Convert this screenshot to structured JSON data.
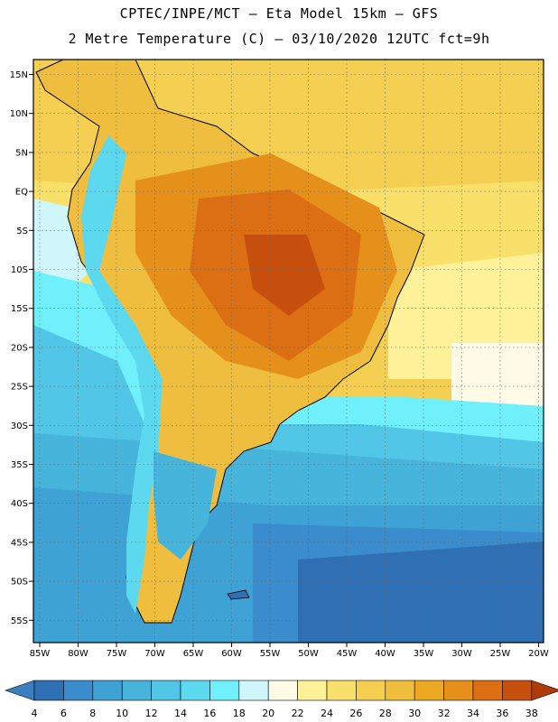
{
  "header": {
    "line1": "CPTEC/INPE/MCT –  Eta Model 15km – GFS",
    "line2": "2 Metre Temperature (C) – 03/10/2020 12UTC fct=9h"
  },
  "axes": {
    "lat_labels": [
      "15N",
      "10N",
      "5N",
      "EQ",
      "5S",
      "10S",
      "15S",
      "20S",
      "25S",
      "30S",
      "35S",
      "40S",
      "45S",
      "50S",
      "55S"
    ],
    "lon_labels": [
      "85W",
      "80W",
      "75W",
      "70W",
      "65W",
      "60W",
      "55W",
      "50W",
      "45W",
      "40W",
      "35W",
      "30W",
      "25W",
      "20W"
    ]
  },
  "colorbar": {
    "labels": [
      "4",
      "6",
      "8",
      "10",
      "12",
      "14",
      "16",
      "18",
      "20",
      "22",
      "24",
      "26",
      "28",
      "30",
      "32",
      "34",
      "36",
      "38"
    ],
    "colors": [
      "#3b7fc0",
      "#2f6fb3",
      "#3a8ccc",
      "#3ea3d4",
      "#47b4dc",
      "#52c6e6",
      "#5dd9ef",
      "#6ff0fb",
      "#cff7fb",
      "#fffbe6",
      "#fdf19a",
      "#f9e06a",
      "#f4cf52",
      "#efbe3e",
      "#ecaa24",
      "#e6901c",
      "#dc6e14",
      "#c8500e",
      "#b03a08"
    ]
  }
}
